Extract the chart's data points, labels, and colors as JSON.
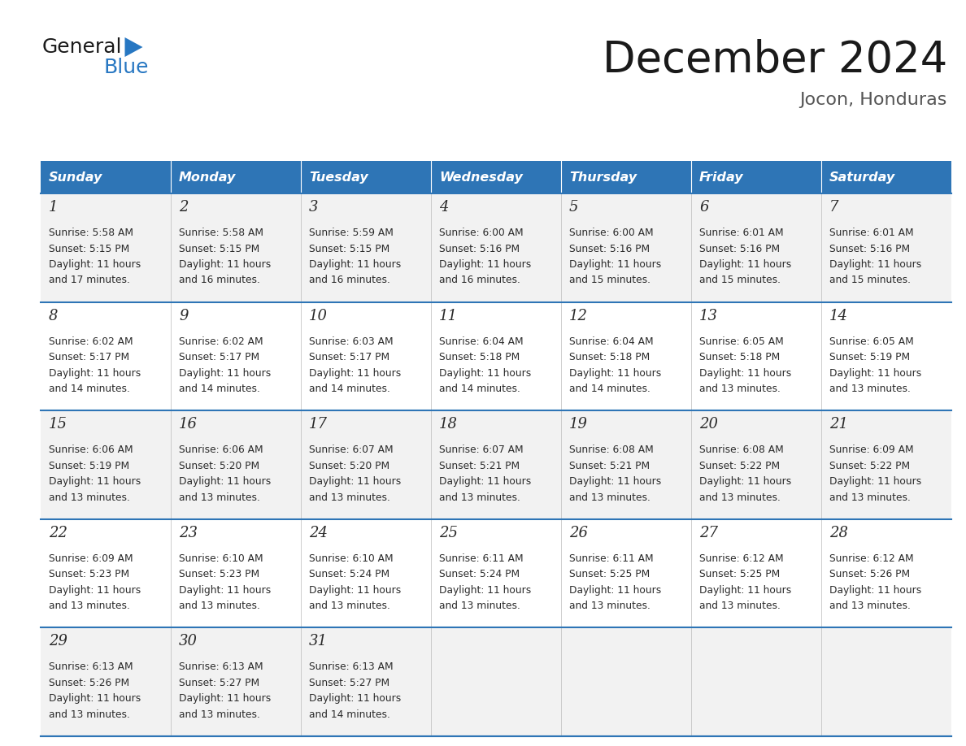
{
  "title": "December 2024",
  "subtitle": "Jocon, Honduras",
  "header_color": "#2E75B6",
  "header_text_color": "#FFFFFF",
  "cell_bg_even": "#F2F2F2",
  "cell_bg_odd": "#FFFFFF",
  "border_color": "#2E75B6",
  "days_of_week": [
    "Sunday",
    "Monday",
    "Tuesday",
    "Wednesday",
    "Thursday",
    "Friday",
    "Saturday"
  ],
  "weeks": [
    [
      {
        "day": "1",
        "sunrise": "5:58 AM",
        "sunset": "5:15 PM",
        "daylight": "11 hours",
        "daylight2": "and 17 minutes."
      },
      {
        "day": "2",
        "sunrise": "5:58 AM",
        "sunset": "5:15 PM",
        "daylight": "11 hours",
        "daylight2": "and 16 minutes."
      },
      {
        "day": "3",
        "sunrise": "5:59 AM",
        "sunset": "5:15 PM",
        "daylight": "11 hours",
        "daylight2": "and 16 minutes."
      },
      {
        "day": "4",
        "sunrise": "6:00 AM",
        "sunset": "5:16 PM",
        "daylight": "11 hours",
        "daylight2": "and 16 minutes."
      },
      {
        "day": "5",
        "sunrise": "6:00 AM",
        "sunset": "5:16 PM",
        "daylight": "11 hours",
        "daylight2": "and 15 minutes."
      },
      {
        "day": "6",
        "sunrise": "6:01 AM",
        "sunset": "5:16 PM",
        "daylight": "11 hours",
        "daylight2": "and 15 minutes."
      },
      {
        "day": "7",
        "sunrise": "6:01 AM",
        "sunset": "5:16 PM",
        "daylight": "11 hours",
        "daylight2": "and 15 minutes."
      }
    ],
    [
      {
        "day": "8",
        "sunrise": "6:02 AM",
        "sunset": "5:17 PM",
        "daylight": "11 hours",
        "daylight2": "and 14 minutes."
      },
      {
        "day": "9",
        "sunrise": "6:02 AM",
        "sunset": "5:17 PM",
        "daylight": "11 hours",
        "daylight2": "and 14 minutes."
      },
      {
        "day": "10",
        "sunrise": "6:03 AM",
        "sunset": "5:17 PM",
        "daylight": "11 hours",
        "daylight2": "and 14 minutes."
      },
      {
        "day": "11",
        "sunrise": "6:04 AM",
        "sunset": "5:18 PM",
        "daylight": "11 hours",
        "daylight2": "and 14 minutes."
      },
      {
        "day": "12",
        "sunrise": "6:04 AM",
        "sunset": "5:18 PM",
        "daylight": "11 hours",
        "daylight2": "and 14 minutes."
      },
      {
        "day": "13",
        "sunrise": "6:05 AM",
        "sunset": "5:18 PM",
        "daylight": "11 hours",
        "daylight2": "and 13 minutes."
      },
      {
        "day": "14",
        "sunrise": "6:05 AM",
        "sunset": "5:19 PM",
        "daylight": "11 hours",
        "daylight2": "and 13 minutes."
      }
    ],
    [
      {
        "day": "15",
        "sunrise": "6:06 AM",
        "sunset": "5:19 PM",
        "daylight": "11 hours",
        "daylight2": "and 13 minutes."
      },
      {
        "day": "16",
        "sunrise": "6:06 AM",
        "sunset": "5:20 PM",
        "daylight": "11 hours",
        "daylight2": "and 13 minutes."
      },
      {
        "day": "17",
        "sunrise": "6:07 AM",
        "sunset": "5:20 PM",
        "daylight": "11 hours",
        "daylight2": "and 13 minutes."
      },
      {
        "day": "18",
        "sunrise": "6:07 AM",
        "sunset": "5:21 PM",
        "daylight": "11 hours",
        "daylight2": "and 13 minutes."
      },
      {
        "day": "19",
        "sunrise": "6:08 AM",
        "sunset": "5:21 PM",
        "daylight": "11 hours",
        "daylight2": "and 13 minutes."
      },
      {
        "day": "20",
        "sunrise": "6:08 AM",
        "sunset": "5:22 PM",
        "daylight": "11 hours",
        "daylight2": "and 13 minutes."
      },
      {
        "day": "21",
        "sunrise": "6:09 AM",
        "sunset": "5:22 PM",
        "daylight": "11 hours",
        "daylight2": "and 13 minutes."
      }
    ],
    [
      {
        "day": "22",
        "sunrise": "6:09 AM",
        "sunset": "5:23 PM",
        "daylight": "11 hours",
        "daylight2": "and 13 minutes."
      },
      {
        "day": "23",
        "sunrise": "6:10 AM",
        "sunset": "5:23 PM",
        "daylight": "11 hours",
        "daylight2": "and 13 minutes."
      },
      {
        "day": "24",
        "sunrise": "6:10 AM",
        "sunset": "5:24 PM",
        "daylight": "11 hours",
        "daylight2": "and 13 minutes."
      },
      {
        "day": "25",
        "sunrise": "6:11 AM",
        "sunset": "5:24 PM",
        "daylight": "11 hours",
        "daylight2": "and 13 minutes."
      },
      {
        "day": "26",
        "sunrise": "6:11 AM",
        "sunset": "5:25 PM",
        "daylight": "11 hours",
        "daylight2": "and 13 minutes."
      },
      {
        "day": "27",
        "sunrise": "6:12 AM",
        "sunset": "5:25 PM",
        "daylight": "11 hours",
        "daylight2": "and 13 minutes."
      },
      {
        "day": "28",
        "sunrise": "6:12 AM",
        "sunset": "5:26 PM",
        "daylight": "11 hours",
        "daylight2": "and 13 minutes."
      }
    ],
    [
      {
        "day": "29",
        "sunrise": "6:13 AM",
        "sunset": "5:26 PM",
        "daylight": "11 hours",
        "daylight2": "and 13 minutes."
      },
      {
        "day": "30",
        "sunrise": "6:13 AM",
        "sunset": "5:27 PM",
        "daylight": "11 hours",
        "daylight2": "and 13 minutes."
      },
      {
        "day": "31",
        "sunrise": "6:13 AM",
        "sunset": "5:27 PM",
        "daylight": "11 hours",
        "daylight2": "and 14 minutes."
      },
      null,
      null,
      null,
      null
    ]
  ],
  "logo_color1": "#1a1a1a",
  "logo_color2": "#2777C2",
  "bg_color": "#FFFFFF"
}
